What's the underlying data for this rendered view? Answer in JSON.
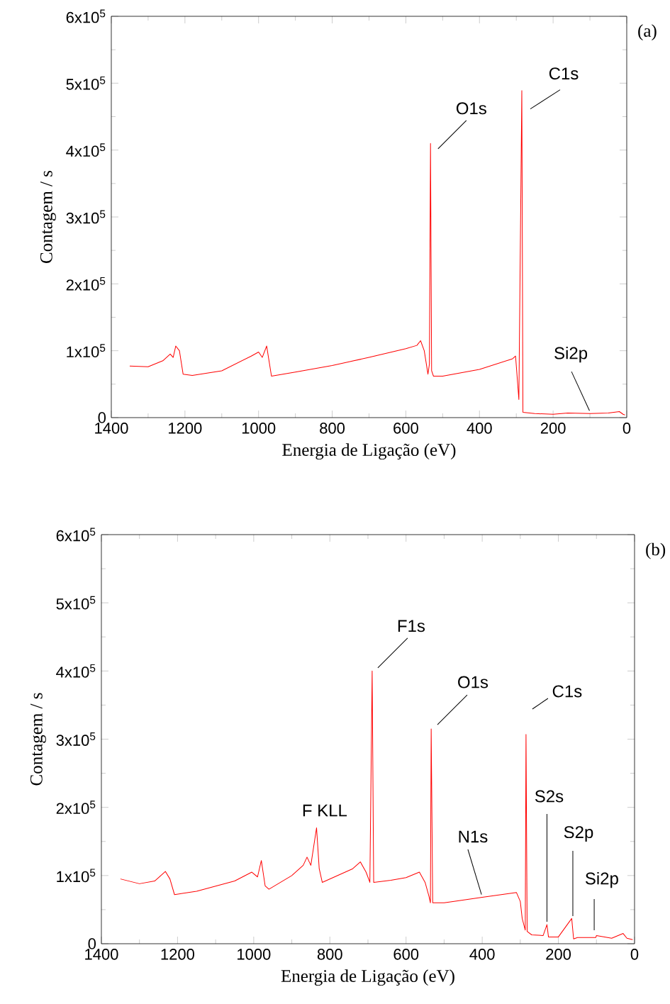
{
  "chart_data": [
    {
      "type": "line",
      "xlabel": "Energia de Ligação (eV)",
      "ylabel": "Contagem / s",
      "xlim": [
        1400,
        0
      ],
      "xticks": [
        1400,
        1200,
        1000,
        800,
        600,
        400,
        200,
        0
      ],
      "ylim": [
        0,
        600000
      ],
      "yticks": [
        0,
        {
          "value": 100000,
          "label": "1x10$^{5}$"
        },
        {
          "value": 200000,
          "label": "2x10$^{5}$"
        },
        {
          "value": 300000,
          "label": "3x10$^{5}$"
        },
        {
          "value": 400000,
          "label": "4x10$^{5}$"
        },
        {
          "value": 500000,
          "label": "5x10$^{5}$"
        },
        {
          "value": 600000,
          "label": "6x10$^{5}$"
        }
      ],
      "annotations": [
        "(a)",
        {
          "text": "O1s",
          "x": 533,
          "y": 410000
        },
        {
          "text": "C1s",
          "x": 285,
          "y": 489000
        },
        {
          "text": "Si2p",
          "x": 100,
          "y": 6000
        }
      ],
      "series": [
        {
          "color": "#ff0000",
          "x": [
            1350,
            1300,
            1260,
            1240,
            1232,
            1225,
            1215,
            1205,
            1180,
            1100,
            1020,
            1000,
            990,
            978,
            965,
            900,
            800,
            700,
            600,
            570,
            560,
            550,
            540,
            536,
            533,
            530,
            525,
            500,
            400,
            310,
            302,
            293,
            285,
            282,
            250,
            200,
            160,
            100,
            50,
            20,
            10,
            5
          ],
          "values": [
            77000,
            76000,
            85000,
            95000,
            90000,
            107000,
            100000,
            65000,
            63000,
            70000,
            92000,
            98000,
            90000,
            107000,
            62000,
            68000,
            78000,
            90000,
            103000,
            108000,
            115000,
            100000,
            65000,
            80000,
            410000,
            70000,
            62000,
            62000,
            72000,
            88000,
            92000,
            27000,
            489000,
            8000,
            6000,
            5000,
            7000,
            6000,
            7000,
            9000,
            5000,
            4000
          ]
        }
      ]
    },
    {
      "type": "line",
      "xlabel": "Energia de Ligação (eV)",
      "ylabel": "Contagem / s",
      "xlim": [
        1400,
        0
      ],
      "xticks": [
        1400,
        1200,
        1000,
        800,
        600,
        400,
        200,
        0
      ],
      "ylim": [
        0,
        600000
      ],
      "yticks": [
        0,
        {
          "value": 100000,
          "label": "1x10$^{5}$"
        },
        {
          "value": 200000,
          "label": "2x10$^{5}$"
        },
        {
          "value": 300000,
          "label": "3x10$^{5}$"
        },
        {
          "value": 400000,
          "label": "4x10$^{5}$"
        },
        {
          "value": 500000,
          "label": "5x10$^{5}$"
        },
        {
          "value": 600000,
          "label": "6x10$^{5}$"
        }
      ],
      "annotations": [
        "(b)",
        {
          "text": "F1s",
          "x": 689,
          "y": 400000
        },
        {
          "text": "O1s",
          "x": 534,
          "y": 315000
        },
        {
          "text": "C1s",
          "x": 285,
          "y": 307000
        },
        {
          "text": "F KLL",
          "x": 835,
          "y": 170000
        },
        {
          "text": "N1s",
          "x": 400,
          "y": 68000
        },
        {
          "text": "S2s",
          "x": 230,
          "y": 28000
        },
        {
          "text": "S2p",
          "x": 165,
          "y": 37000
        },
        {
          "text": "Si2p",
          "x": 100,
          "y": 12000
        }
      ],
      "series": [
        {
          "color": "#ff0000",
          "x": [
            1350,
            1300,
            1260,
            1232,
            1220,
            1208,
            1150,
            1050,
            1005,
            990,
            980,
            970,
            960,
            900,
            870,
            860,
            850,
            835,
            828,
            820,
            780,
            740,
            720,
            705,
            695,
            689,
            685,
            640,
            600,
            565,
            550,
            540,
            536,
            534,
            530,
            500,
            400,
            310,
            300,
            295,
            287,
            285,
            282,
            270,
            240,
            230,
            226,
            200,
            165,
            160,
            150,
            102,
            100,
            60,
            30,
            20,
            5
          ],
          "values": [
            95000,
            88000,
            92000,
            106000,
            95000,
            72000,
            77000,
            92000,
            105000,
            98000,
            122000,
            85000,
            80000,
            100000,
            115000,
            127000,
            115000,
            170000,
            110000,
            90000,
            100000,
            110000,
            120000,
            105000,
            90000,
            400000,
            90000,
            93000,
            97000,
            105000,
            90000,
            70000,
            60000,
            315000,
            60000,
            60000,
            68000,
            75000,
            62000,
            37000,
            20000,
            307000,
            18000,
            13000,
            12000,
            28000,
            10000,
            10000,
            37000,
            7000,
            9000,
            9000,
            12000,
            8000,
            15000,
            8000,
            6000
          ]
        }
      ]
    }
  ]
}
